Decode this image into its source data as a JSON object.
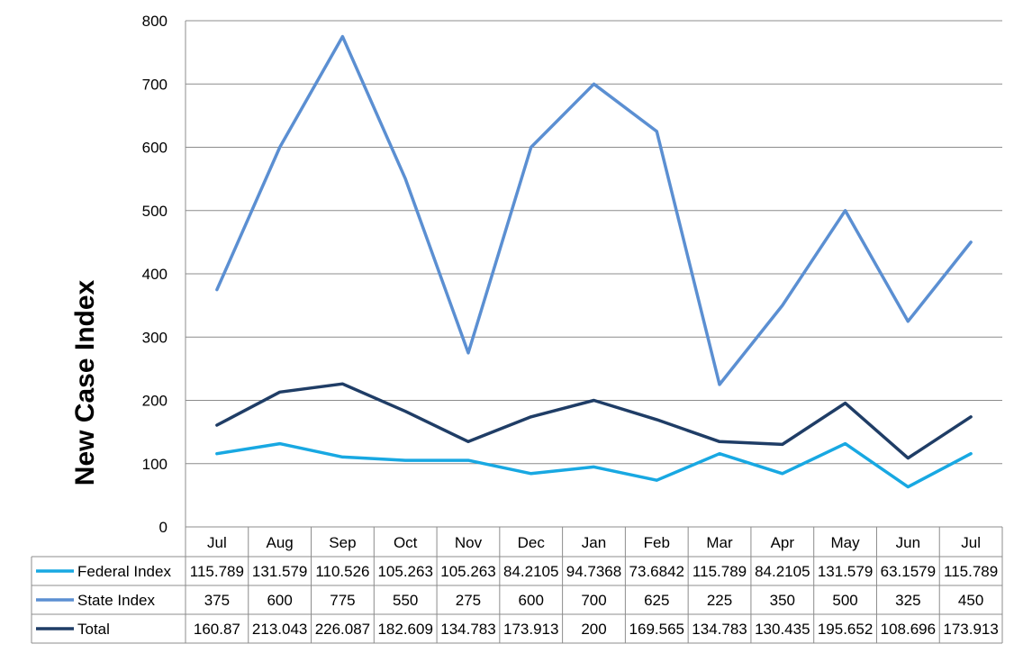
{
  "chart_data": {
    "type": "line",
    "title": "",
    "xlabel": "",
    "ylabel": "New Case Index",
    "ylim": [
      0,
      800
    ],
    "yticks": [
      0,
      100,
      200,
      300,
      400,
      500,
      600,
      700,
      800
    ],
    "grid": true,
    "legend_placement": "data-table-left",
    "categories": [
      "Jul",
      "Aug",
      "Sep",
      "Oct",
      "Nov",
      "Dec",
      "Jan",
      "Feb",
      "Mar",
      "Apr",
      "May",
      "Jun",
      "Jul"
    ],
    "series": [
      {
        "name": "Federal Index",
        "color": "#18A8E2",
        "values": [
          115.789,
          131.579,
          110.526,
          105.263,
          105.263,
          84.2105,
          94.7368,
          73.6842,
          115.789,
          84.2105,
          131.579,
          63.1579,
          115.789
        ],
        "labels": [
          "115.789",
          "131.579",
          "110.526",
          "105.263",
          "105.263",
          "84.2105",
          "94.7368",
          "73.6842",
          "115.789",
          "84.2105",
          "131.579",
          "63.1579",
          "115.789"
        ]
      },
      {
        "name": "State Index",
        "color": "#5B8FD2",
        "values": [
          375,
          600,
          775,
          550,
          275,
          600,
          700,
          625,
          225,
          350,
          500,
          325,
          450
        ],
        "labels": [
          "375",
          "600",
          "775",
          "550",
          "275",
          "600",
          "700",
          "625",
          "225",
          "350",
          "500",
          "325",
          "450"
        ]
      },
      {
        "name": "Total",
        "color": "#1F3D66",
        "values": [
          160.87,
          213.043,
          226.087,
          182.609,
          134.783,
          173.913,
          200,
          169.565,
          134.783,
          130.435,
          195.652,
          108.696,
          173.913
        ],
        "labels": [
          "160.87",
          "213.043",
          "226.087",
          "182.609",
          "134.783",
          "173.913",
          "200",
          "169.565",
          "134.783",
          "130.435",
          "195.652",
          "108.696",
          "173.913"
        ]
      }
    ]
  }
}
